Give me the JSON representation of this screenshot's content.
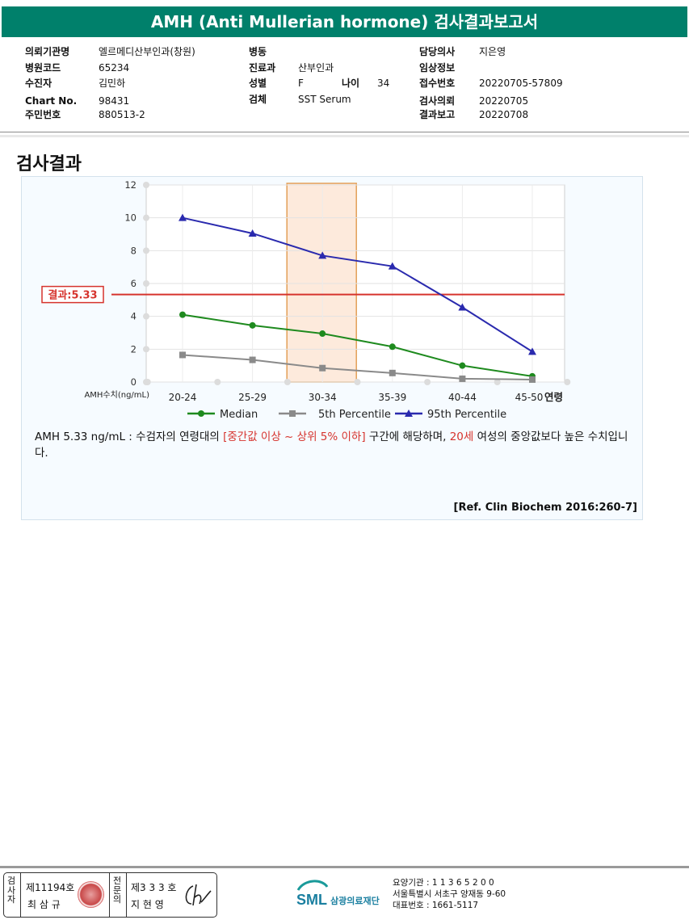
{
  "header": {
    "title": "AMH (Anti Mullerian hormone) 검사결과보고서"
  },
  "info": {
    "col1": [
      {
        "label": "의뢰기관명",
        "value": "엘르메디산부인과(창원)"
      },
      {
        "label": "병원코드",
        "value": "65234"
      },
      {
        "label": "수진자",
        "value": "김민하"
      },
      {
        "label": "Chart No.",
        "value": "98431"
      },
      {
        "label": "주민번호",
        "value": "880513-2"
      }
    ],
    "col2": [
      {
        "label": "병동",
        "value": ""
      },
      {
        "label": "진료과",
        "value": "산부인과"
      },
      {
        "label": "성별",
        "value": "F"
      },
      {
        "label": "검체",
        "value": "SST Serum"
      }
    ],
    "age_label": "나이",
    "age_value": "34",
    "col3": [
      {
        "label": "담당의사",
        "value": "지은영"
      },
      {
        "label": "임상정보",
        "value": ""
      },
      {
        "label": "접수번호",
        "value": "20220705-57809"
      },
      {
        "label": "검사의뢰",
        "value": "20220705"
      },
      {
        "label": "결과보고",
        "value": "20220708"
      }
    ]
  },
  "section_title": "검사결과",
  "chart_data": {
    "type": "line",
    "categories": [
      "20-24",
      "25-29",
      "30-34",
      "35-39",
      "40-44",
      "45-50"
    ],
    "xlabel": "연령",
    "ylabel": "AMH수치(ng/mL)",
    "ylim": [
      0,
      12
    ],
    "yticks": [
      "0",
      "2",
      "4",
      "6",
      "8",
      "10",
      "12"
    ],
    "grid": true,
    "legend_position": "bottom",
    "highlight_category": "30-34",
    "result_line": {
      "value": 5.33,
      "label": "결과:5.33",
      "color": "#d6332d"
    },
    "series": [
      {
        "name": "Median",
        "color": "#1e8a1e",
        "marker": "circle",
        "values": [
          4.1,
          3.45,
          2.95,
          2.15,
          1.0,
          0.35
        ]
      },
      {
        "name": "5th Percentile",
        "color": "#8a8a8a",
        "marker": "square",
        "values": [
          1.65,
          1.35,
          0.85,
          0.55,
          0.2,
          0.15
        ]
      },
      {
        "name": "95th Percentile",
        "color": "#2a2aae",
        "marker": "triangle",
        "values": [
          10.0,
          9.05,
          7.7,
          7.05,
          4.55,
          1.85
        ]
      }
    ]
  },
  "description": {
    "part1": "AMH  5.33 ng/mL : 수검자의 연령대의 ",
    "part2": "[중간값 이상 ~ 상위 5% 이하]",
    "part3": "  구간에 해당하며, ",
    "part4": "20세",
    "part5": " 여성의 중앙값보다 높은 수치입니다."
  },
  "reference": "[Ref. Clin Biochem 2016:260-7]",
  "footer": {
    "examiner_label": "검사자",
    "examiner_no": "제11194호",
    "examiner_name": "최 삼 규",
    "confirmer_label": "전문의",
    "confirmer_no": "제3 3 3 호",
    "confirmer_name": "지 현 영",
    "org_short": "SML",
    "org_name": "삼광의료재단",
    "org_lines": [
      "요양기관 : 1 1 3 6 5 2 0 0",
      "서울특별시 서초구 양재동 9-60",
      "대표번호 : 1661-5117"
    ]
  }
}
